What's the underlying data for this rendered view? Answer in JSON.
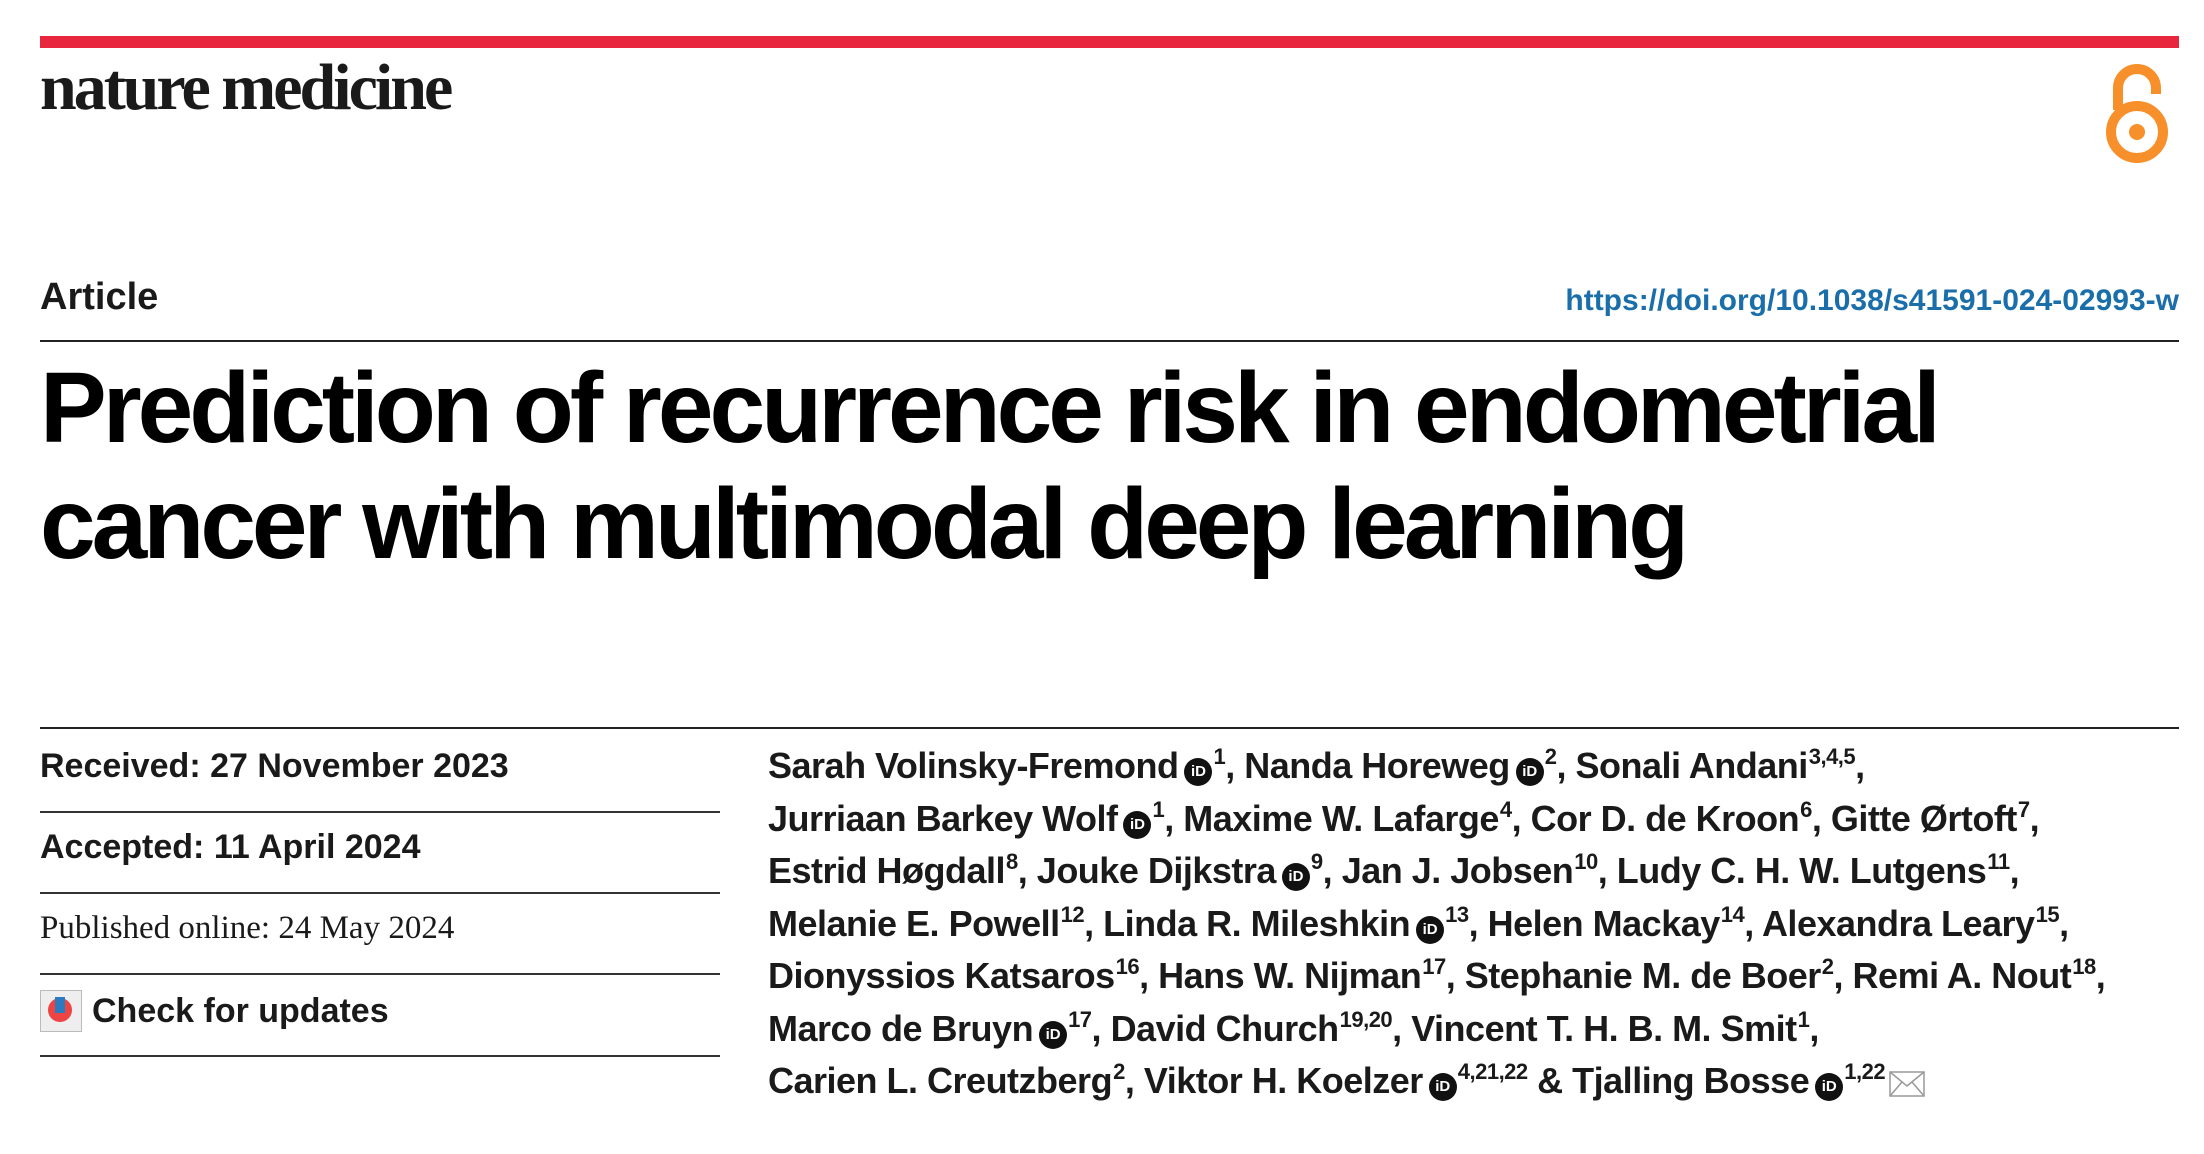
{
  "header": {
    "journal_name": "nature medicine",
    "brand_color": "#e8263e",
    "open_access_icon": "open-access-lock-icon",
    "open_access_color": "#f7902a"
  },
  "article": {
    "type": "Article",
    "doi": "https://doi.org/10.1038/s41591-024-02993-w",
    "title": "Prediction of recurrence risk in endometrial cancer with multimodal deep learning"
  },
  "dates": {
    "received": "Received: 27 November 2023",
    "accepted": "Accepted: 11 April 2024",
    "published": "Published online: 24 May 2024",
    "check_updates": "Check for updates"
  },
  "authors": [
    {
      "name": "Sarah Volinsky-Fremond",
      "orcid": true,
      "aff": "1",
      "sep": ", "
    },
    {
      "name": "Nanda Horeweg",
      "orcid": true,
      "aff": "2",
      "sep": ", "
    },
    {
      "name": "Sonali Andani",
      "orcid": false,
      "aff": "3,4,5",
      "sep": ", "
    },
    {
      "name": "Jurriaan Barkey Wolf",
      "orcid": true,
      "aff": "1",
      "sep": ", "
    },
    {
      "name": "Maxime W. Lafarge",
      "orcid": false,
      "aff": "4",
      "sep": ", "
    },
    {
      "name": "Cor D. de Kroon",
      "orcid": false,
      "aff": "6",
      "sep": ", "
    },
    {
      "name": "Gitte Ørtoft",
      "orcid": false,
      "aff": "7",
      "sep": ", "
    },
    {
      "name": "Estrid Høgdall",
      "orcid": false,
      "aff": "8",
      "sep": ", "
    },
    {
      "name": "Jouke Dijkstra",
      "orcid": true,
      "aff": "9",
      "sep": ", "
    },
    {
      "name": "Jan J. Jobsen",
      "orcid": false,
      "aff": "10",
      "sep": ", "
    },
    {
      "name": "Ludy C. H. W. Lutgens",
      "orcid": false,
      "aff": "11",
      "sep": ", "
    },
    {
      "name": "Melanie E. Powell",
      "orcid": false,
      "aff": "12",
      "sep": ", "
    },
    {
      "name": "Linda R. Mileshkin",
      "orcid": true,
      "aff": "13",
      "sep": ", "
    },
    {
      "name": "Helen Mackay",
      "orcid": false,
      "aff": "14",
      "sep": ", "
    },
    {
      "name": "Alexandra Leary",
      "orcid": false,
      "aff": "15",
      "sep": ", "
    },
    {
      "name": "Dionyssios Katsaros",
      "orcid": false,
      "aff": "16",
      "sep": ", "
    },
    {
      "name": "Hans W. Nijman",
      "orcid": false,
      "aff": "17",
      "sep": ", "
    },
    {
      "name": "Stephanie M. de Boer",
      "orcid": false,
      "aff": "2",
      "sep": ", "
    },
    {
      "name": "Remi A. Nout",
      "orcid": false,
      "aff": "18",
      "sep": ", "
    },
    {
      "name": "Marco de Bruyn",
      "orcid": true,
      "aff": "17",
      "sep": ", "
    },
    {
      "name": "David Church",
      "orcid": false,
      "aff": "19,20",
      "sep": ", "
    },
    {
      "name": "Vincent T. H. B. M. Smit",
      "orcid": false,
      "aff": "1",
      "sep": ", "
    },
    {
      "name": "Carien L. Creutzberg",
      "orcid": false,
      "aff": "2",
      "sep": ", "
    },
    {
      "name": "Viktor H. Koelzer",
      "orcid": true,
      "aff": "4,21,22",
      "sep": " & "
    },
    {
      "name": "Tjalling Bosse",
      "orcid": true,
      "aff": "1,22",
      "sep": "",
      "corresponding": true
    }
  ],
  "orcid_glyph": "iD"
}
